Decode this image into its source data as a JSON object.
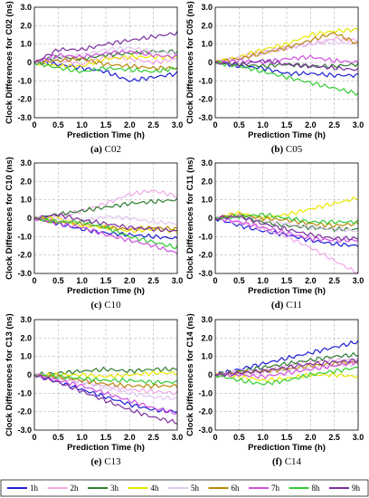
{
  "chart_data": {
    "type": "line",
    "xlabel": "Prediction Time (h)",
    "xlim": [
      0,
      3.0
    ],
    "ylim": [
      -3.0,
      3.0
    ],
    "xticks": [
      "0",
      "0.5",
      "1.0",
      "1.5",
      "2.0",
      "2.5",
      "3.0"
    ],
    "yticks": [
      "3.0",
      "2.0",
      "1.0",
      "0",
      "-1.0",
      "-2.0",
      "-3.0"
    ],
    "grid": true,
    "legend_position": "bottom",
    "legend": [
      {
        "name": "1h",
        "color": "#1f1fd6"
      },
      {
        "name": "2h",
        "color": "#f0a8e8"
      },
      {
        "name": "3h",
        "color": "#2e7d32"
      },
      {
        "name": "4h",
        "color": "#e8e800"
      },
      {
        "name": "5h",
        "color": "#e0c8f0"
      },
      {
        "name": "6h",
        "color": "#b8860b"
      },
      {
        "name": "7h",
        "color": "#d050e0"
      },
      {
        "name": "8h",
        "color": "#33cc33"
      },
      {
        "name": "9h",
        "color": "#7b2fa0"
      }
    ],
    "x": [
      0,
      0.5,
      1.0,
      1.5,
      2.0,
      2.5,
      3.0
    ],
    "panels": [
      {
        "ylabel": "Clock Differences for C02 (ns)",
        "caption_letter": "(a)",
        "caption_name": "C02",
        "series": [
          {
            "name": "1h",
            "values": [
              0,
              -0.1,
              -0.3,
              -0.5,
              -1.0,
              -0.8,
              -0.6
            ]
          },
          {
            "name": "2h",
            "values": [
              0,
              0.2,
              -0.1,
              0.3,
              0.2,
              0.0,
              0.2
            ]
          },
          {
            "name": "3h",
            "values": [
              0,
              0.3,
              0.2,
              0.4,
              0.5,
              0.6,
              0.6
            ]
          },
          {
            "name": "4h",
            "values": [
              0,
              -0.2,
              -0.2,
              0.2,
              0.3,
              0.3,
              0.3
            ]
          },
          {
            "name": "5h",
            "values": [
              0,
              0.3,
              0.4,
              0.7,
              0.8,
              0.6,
              0.5
            ]
          },
          {
            "name": "6h",
            "values": [
              0,
              0.1,
              0.2,
              -0.1,
              -0.2,
              -0.3,
              -0.3
            ]
          },
          {
            "name": "7h",
            "values": [
              0,
              0.4,
              0.3,
              0.5,
              0.6,
              0.4,
              0.3
            ]
          },
          {
            "name": "8h",
            "values": [
              0,
              -0.3,
              -0.5,
              -0.3,
              -0.4,
              -0.5,
              -0.3
            ]
          },
          {
            "name": "9h",
            "values": [
              0,
              0.7,
              0.7,
              1.0,
              1.2,
              1.4,
              1.6
            ]
          }
        ]
      },
      {
        "ylabel": "Clock Differences for C05 (ns)",
        "caption_letter": "(b)",
        "caption_name": "C05",
        "series": [
          {
            "name": "1h",
            "values": [
              0,
              -0.2,
              -0.3,
              -0.6,
              -0.6,
              -0.7,
              -0.7
            ]
          },
          {
            "name": "2h",
            "values": [
              0,
              0.3,
              0.6,
              0.8,
              1.0,
              1.3,
              1.2
            ]
          },
          {
            "name": "3h",
            "values": [
              0,
              -0.1,
              -0.2,
              -0.1,
              -0.2,
              -0.2,
              -0.1
            ]
          },
          {
            "name": "4h",
            "values": [
              0,
              0.3,
              0.7,
              1.0,
              1.5,
              1.7,
              1.8
            ]
          },
          {
            "name": "5h",
            "values": [
              0,
              0.2,
              0.5,
              0.8,
              1.0,
              1.1,
              1.0
            ]
          },
          {
            "name": "6h",
            "values": [
              0,
              0.2,
              0.5,
              0.8,
              1.2,
              1.6,
              1.0
            ]
          },
          {
            "name": "7h",
            "values": [
              0,
              0.1,
              0.0,
              0.2,
              0.3,
              0.1,
              0.0
            ]
          },
          {
            "name": "8h",
            "values": [
              0,
              -0.2,
              -0.5,
              -0.8,
              -1.1,
              -1.4,
              -1.7
            ]
          },
          {
            "name": "9h",
            "values": [
              0,
              -0.1,
              0.1,
              -0.1,
              -0.2,
              -0.3,
              -0.4
            ]
          }
        ]
      },
      {
        "ylabel": "Clock Differences for C10 (ns)",
        "caption_letter": "(c)",
        "caption_name": "C10",
        "series": [
          {
            "name": "1h",
            "values": [
              0,
              -0.3,
              -0.6,
              -0.8,
              -0.9,
              -1.0,
              -1.1
            ]
          },
          {
            "name": "2h",
            "values": [
              0,
              0.1,
              0.4,
              0.8,
              1.3,
              1.5,
              1.2
            ]
          },
          {
            "name": "3h",
            "values": [
              0,
              0.2,
              0.4,
              0.6,
              0.8,
              0.9,
              1.0
            ]
          },
          {
            "name": "4h",
            "values": [
              0,
              0.0,
              -0.4,
              -0.5,
              -0.7,
              -0.6,
              -0.7
            ]
          },
          {
            "name": "5h",
            "values": [
              0,
              -0.1,
              -0.2,
              0.1,
              0.0,
              -0.2,
              -0.3
            ]
          },
          {
            "name": "6h",
            "values": [
              0,
              -0.2,
              -0.3,
              -0.5,
              -0.6,
              -0.5,
              -0.6
            ]
          },
          {
            "name": "7h",
            "values": [
              0,
              -0.3,
              -0.5,
              -0.9,
              -1.2,
              -1.5,
              -1.9
            ]
          },
          {
            "name": "8h",
            "values": [
              0,
              -0.2,
              -0.2,
              -0.5,
              -1.0,
              -1.3,
              -1.6
            ]
          },
          {
            "name": "9h",
            "values": [
              0,
              0.2,
              -0.1,
              -0.3,
              -0.5,
              -0.6,
              -0.7
            ]
          }
        ]
      },
      {
        "ylabel": "Clock Differences for C11 (ns)",
        "caption_letter": "(d)",
        "caption_name": "C11",
        "series": [
          {
            "name": "1h",
            "values": [
              0,
              -0.4,
              -0.7,
              -0.9,
              -1.2,
              -1.4,
              -1.5
            ]
          },
          {
            "name": "2h",
            "values": [
              0,
              -0.2,
              -0.6,
              -1.0,
              -1.6,
              -2.3,
              -3.0
            ]
          },
          {
            "name": "3h",
            "values": [
              0,
              0.1,
              -0.2,
              -0.4,
              -0.5,
              -0.6,
              -0.6
            ]
          },
          {
            "name": "4h",
            "values": [
              0,
              0.3,
              0.0,
              0.2,
              0.5,
              0.8,
              1.1
            ]
          },
          {
            "name": "5h",
            "values": [
              0,
              0.1,
              -0.1,
              -0.3,
              -0.5,
              -0.6,
              -0.7
            ]
          },
          {
            "name": "6h",
            "values": [
              0,
              0.2,
              0.0,
              -0.1,
              -0.3,
              -0.4,
              -0.3
            ]
          },
          {
            "name": "7h",
            "values": [
              0,
              -0.2,
              -0.5,
              -0.8,
              -1.1,
              -1.2,
              -1.2
            ]
          },
          {
            "name": "8h",
            "values": [
              0,
              0.1,
              0.2,
              0.0,
              -0.2,
              -0.2,
              -0.2
            ]
          },
          {
            "name": "9h",
            "values": [
              0,
              0.1,
              -0.3,
              -0.6,
              -0.9,
              -1.1,
              -1.1
            ]
          }
        ]
      },
      {
        "ylabel": "Clock Differences for C13 (ns)",
        "caption_letter": "(e)",
        "caption_name": "C13",
        "series": [
          {
            "name": "1h",
            "values": [
              0,
              -0.4,
              -0.8,
              -1.2,
              -1.6,
              -1.9,
              -2.0
            ]
          },
          {
            "name": "2h",
            "values": [
              0,
              -0.2,
              -0.4,
              -0.6,
              -0.8,
              -0.9,
              -1.0
            ]
          },
          {
            "name": "3h",
            "values": [
              0,
              0.1,
              0.2,
              0.3,
              0.2,
              0.3,
              0.3
            ]
          },
          {
            "name": "4h",
            "values": [
              0,
              0.0,
              0.0,
              -0.1,
              0.0,
              0.1,
              0.1
            ]
          },
          {
            "name": "5h",
            "values": [
              0,
              -0.2,
              -0.4,
              -0.7,
              -1.0,
              -1.2,
              -1.3
            ]
          },
          {
            "name": "6h",
            "values": [
              0,
              -0.1,
              -0.3,
              -0.5,
              -0.6,
              -0.6,
              -0.6
            ]
          },
          {
            "name": "7h",
            "values": [
              0,
              -0.3,
              -0.6,
              -1.0,
              -1.4,
              -1.8,
              -2.1
            ]
          },
          {
            "name": "8h",
            "values": [
              0,
              -0.1,
              -0.2,
              -0.3,
              -0.3,
              -0.4,
              -0.4
            ]
          },
          {
            "name": "9h",
            "values": [
              0,
              -0.4,
              -0.9,
              -1.4,
              -1.9,
              -2.3,
              -2.6
            ]
          }
        ]
      },
      {
        "ylabel": "Clock Differences for C14 (ns)",
        "caption_letter": "(f)",
        "caption_name": "C14",
        "series": [
          {
            "name": "1h",
            "values": [
              0,
              0.3,
              0.6,
              0.9,
              1.2,
              1.5,
              1.8
            ]
          },
          {
            "name": "2h",
            "values": [
              0,
              0.2,
              0.3,
              0.5,
              0.7,
              0.8,
              0.8
            ]
          },
          {
            "name": "3h",
            "values": [
              0,
              0.2,
              0.4,
              0.6,
              0.8,
              1.0,
              1.1
            ]
          },
          {
            "name": "4h",
            "values": [
              0,
              -0.1,
              -0.3,
              -0.2,
              0.0,
              0.0,
              -0.1
            ]
          },
          {
            "name": "5h",
            "values": [
              0,
              0.1,
              0.2,
              0.3,
              0.4,
              0.5,
              0.6
            ]
          },
          {
            "name": "6h",
            "values": [
              0,
              0.1,
              0.2,
              0.3,
              0.5,
              0.6,
              0.7
            ]
          },
          {
            "name": "7h",
            "values": [
              0,
              0.0,
              -0.1,
              0.1,
              0.3,
              0.5,
              0.7
            ]
          },
          {
            "name": "8h",
            "values": [
              0,
              -0.3,
              -0.5,
              -0.3,
              0.0,
              0.2,
              0.4
            ]
          },
          {
            "name": "9h",
            "values": [
              0,
              0.1,
              0.2,
              0.4,
              0.6,
              0.7,
              0.8
            ]
          }
        ]
      }
    ]
  }
}
